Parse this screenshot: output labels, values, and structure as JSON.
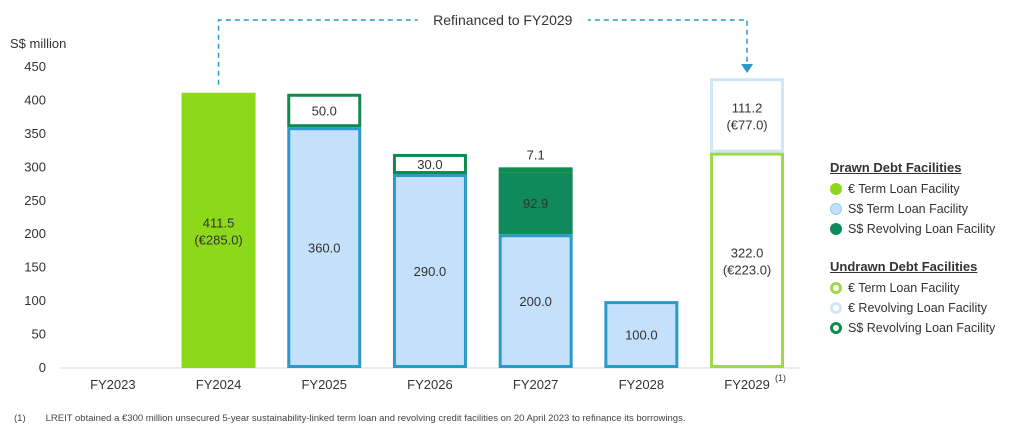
{
  "chart_data": {
    "type": "bar",
    "stacked": true,
    "ylabel": "S$ million",
    "ylim": [
      0,
      450
    ],
    "yticks": [
      0,
      50,
      100,
      150,
      200,
      250,
      300,
      350,
      400,
      450
    ],
    "categories": [
      "FY2023",
      "FY2024",
      "FY2025",
      "FY2026",
      "FY2027",
      "FY2028",
      "FY2029"
    ],
    "category_superscript": {
      "FY2029": "(1)"
    },
    "annotation": "Refinanced to FY2029",
    "stacks": [
      [],
      [
        {
          "series": "eur_term_drawn",
          "value": 411.5,
          "label": "411.5",
          "sublabel": "(€285.0)"
        }
      ],
      [
        {
          "series": "sgd_term_drawn",
          "value": 360.0,
          "label": "360.0"
        },
        {
          "series": "sgd_rev_undrawn",
          "value": 50.0,
          "label": "50.0"
        }
      ],
      [
        {
          "series": "sgd_term_drawn",
          "value": 290.0,
          "label": "290.0"
        },
        {
          "series": "sgd_rev_undrawn",
          "value": 30.0,
          "label": "30.0"
        }
      ],
      [
        {
          "series": "sgd_term_drawn",
          "value": 200.0,
          "label": "200.0"
        },
        {
          "series": "sgd_rev_drawn",
          "value": 92.9,
          "label": "92.9"
        },
        {
          "series": "sgd_rev_undrawn",
          "value": 7.1,
          "label": "7.1",
          "label_outside": true
        }
      ],
      [
        {
          "series": "sgd_term_drawn",
          "value": 100.0,
          "label": "100.0"
        }
      ],
      [
        {
          "series": "eur_term_undrawn",
          "value": 322.0,
          "label": "322.0",
          "sublabel": "(€223.0)"
        },
        {
          "series": "eur_rev_undrawn",
          "value": 111.2,
          "label": "111.2",
          "sublabel": "(€77.0)"
        }
      ]
    ],
    "series_styles": {
      "eur_term_drawn": {
        "fill": "#8dd81a",
        "stroke": "#8dd81a"
      },
      "sgd_term_drawn": {
        "fill": "#c5e0fb",
        "stroke": "#2a9bc8"
      },
      "sgd_rev_drawn": {
        "fill": "#108a5a",
        "stroke": "#108a5a"
      },
      "sgd_rev_undrawn": {
        "fill": "#ffffff",
        "stroke": "#118a4e"
      },
      "eur_term_undrawn": {
        "fill": "#ffffff",
        "stroke": "#9fd94a"
      },
      "eur_rev_undrawn": {
        "fill": "#ffffff",
        "stroke": "#cfe6f6"
      }
    },
    "legend": {
      "drawn_title": "Drawn Debt Facilities",
      "drawn": [
        {
          "label": "€ Term Loan Facility",
          "style": "filled",
          "color": "#8dd81a"
        },
        {
          "label": "S$ Term Loan Facility",
          "style": "filled-outline",
          "color": "#c5e0fb"
        },
        {
          "label": "S$ Revolving Loan Facility",
          "style": "filled",
          "color": "#108a5a"
        }
      ],
      "undrawn_title": "Undrawn Debt Facilities",
      "undrawn": [
        {
          "label": "€ Term Loan Facility",
          "style": "ring",
          "color": "#9fd94a"
        },
        {
          "label": "€ Revolving Loan Facility",
          "style": "ring",
          "color": "#cfe6f6"
        },
        {
          "label": "S$ Revolving Loan Facility",
          "style": "ring",
          "color": "#118a4e"
        }
      ]
    }
  },
  "footnote": {
    "number": "(1)",
    "text": "LREIT obtained a €300 million unsecured 5-year sustainability-linked term loan and revolving credit facilities on 20 April 2023 to refinance its borrowings."
  }
}
